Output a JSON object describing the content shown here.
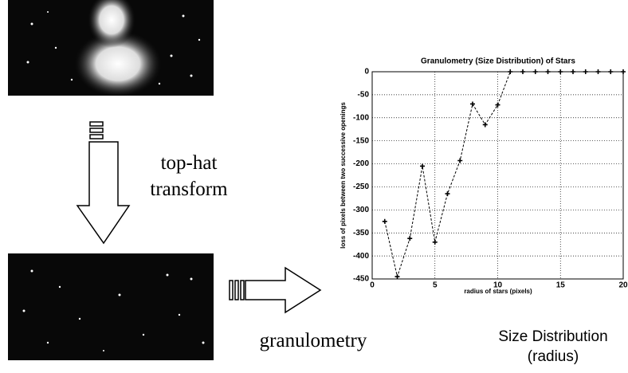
{
  "labels": {
    "step1": [
      "top-hat",
      "transform"
    ],
    "step2": "granulometry",
    "caption": [
      "Size Distribution",
      "(radius)"
    ]
  },
  "chart_data": {
    "type": "line",
    "title": "Granulometry (Size Distribution) of Stars",
    "x_label": "radius of stars (pixels)",
    "y_label": "loss of pixels between two successive openings",
    "x": [
      1,
      2,
      3,
      4,
      5,
      6,
      7,
      8,
      9,
      10,
      11,
      12,
      13,
      14,
      15,
      16,
      17,
      18,
      19,
      20
    ],
    "values": [
      -325,
      -445,
      -362,
      -205,
      -370,
      -265,
      -193,
      -70,
      -115,
      -72,
      0,
      0,
      0,
      0,
      0,
      0,
      0,
      0,
      0,
      0
    ],
    "color": "#000000",
    "xlim": [
      0,
      20
    ],
    "ylim": [
      -450,
      0
    ],
    "xticks": [
      0,
      5,
      10,
      15,
      20
    ],
    "yticks": [
      0,
      -50,
      -100,
      -150,
      -200,
      -250,
      -300,
      -350,
      -400,
      -450
    ],
    "grid": true
  }
}
